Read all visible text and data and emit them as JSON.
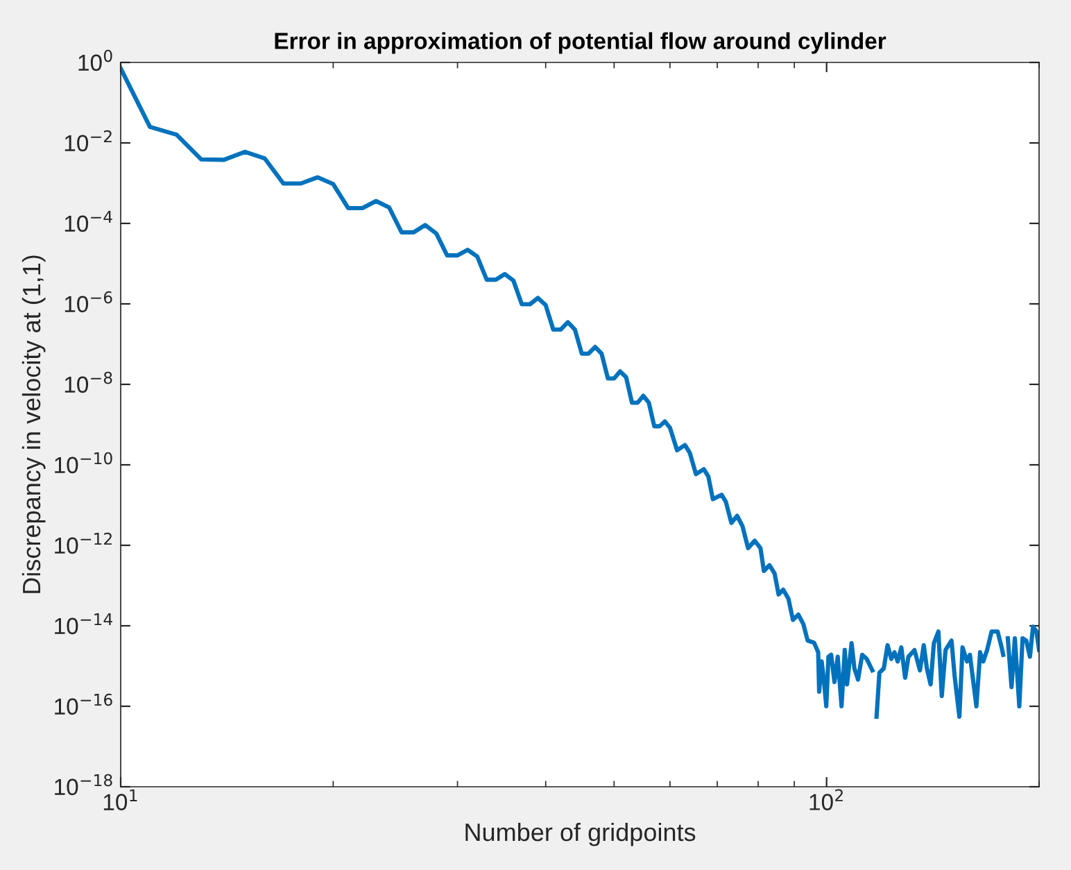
{
  "chart_data": {
    "type": "line",
    "title": "Error in approximation of potential flow around cylinder",
    "xlabel": "Number of gridpoints",
    "ylabel": "Discrepancy in velocity at (1,1)",
    "log": "xy",
    "grid": false,
    "marker": "none",
    "line_style": "solid",
    "xlim": [
      10,
      200
    ],
    "xticks": [
      {
        "value": 10,
        "label": "10$^{1}$"
      },
      {
        "value": 100,
        "label": "10$^{2}$"
      }
    ],
    "ylim": [
      1e-18,
      1
    ],
    "yticks": [
      {
        "value": 1e-18,
        "label": "10$^{−18}$"
      },
      {
        "value": 1e-16,
        "label": "10$^{−16}$"
      },
      {
        "value": 1e-14,
        "label": "10$^{−14}$"
      },
      {
        "value": 1e-12,
        "label": "10$^{−12}$"
      },
      {
        "value": 1e-10,
        "label": "10$^{−10}$"
      },
      {
        "value": 1e-08,
        "label": "10$^{−8}$"
      },
      {
        "value": 1e-06,
        "label": "10$^{−6}$"
      },
      {
        "value": 0.0001,
        "label": "10$^{−4}$"
      },
      {
        "value": 0.01,
        "label": "10$^{−2}$"
      },
      {
        "value": 1,
        "label": "10$^{0}$"
      }
    ],
    "series": [
      {
        "color": "#0072bd",
        "x": [
          10,
          11,
          12,
          13,
          14,
          15,
          16,
          17,
          18,
          19,
          20,
          21,
          22,
          23,
          24,
          25,
          26,
          27,
          28,
          29,
          30,
          31,
          32,
          33,
          34,
          35,
          36,
          37,
          38,
          39,
          40,
          41,
          42,
          43,
          44,
          45,
          46,
          47,
          48,
          49,
          50,
          51,
          52,
          53,
          54,
          55,
          56,
          57,
          58,
          59,
          60,
          61.4,
          63,
          64,
          65.3,
          67,
          68,
          69,
          71,
          72,
          73.3,
          74.7,
          76,
          77.4,
          79.1,
          80.6,
          81.5,
          83,
          84.4,
          85.5,
          86.8,
          88.3,
          89.6,
          91.2,
          92.7,
          94,
          96,
          97.3,
          97.6,
          98.4,
          99.1,
          99.9,
          100.6,
          101.5,
          102.6,
          103.7,
          105.0,
          106.1,
          106.9,
          108.5,
          109.5,
          110.8,
          112.3,
          114.0,
          116.1,
          117,
          117.7,
          118.8,
          120.5,
          122.0,
          123.5,
          124.8,
          126.1,
          127.6,
          129.2,
          130.6,
          133.2,
          135.6,
          137.3,
          138.7,
          140.4,
          141.9,
          144.0,
          145.6,
          147.4,
          150.3,
          151.8,
          154.2,
          155.8,
          158.1,
          159.6,
          163.0,
          165.0,
          166.7,
          168.8,
          171.3,
          174.7,
          177.0,
          177.9,
          179,
          180.6,
          182.8,
          184.8,
          187.5,
          189.5,
          191.8,
          194.1,
          196.1,
          198.3,
          200
        ],
        "values": [
          0.71,
          0.025,
          0.016,
          0.0039,
          0.0038,
          0.006,
          0.0041,
          0.00098,
          0.00098,
          0.0014,
          0.00095,
          0.00024,
          0.00024,
          0.00036,
          0.00025,
          6e-05,
          6e-05,
          9.1e-05,
          5.6e-05,
          1.6e-05,
          1.6e-05,
          2.2e-05,
          1.5e-05,
          4e-06,
          4e-06,
          5.5e-06,
          3.8e-06,
          9.8e-07,
          9.8e-07,
          1.4e-06,
          9.3e-07,
          2.3e-07,
          2.3e-07,
          3.5e-07,
          2.3e-07,
          5.8e-08,
          5.8e-08,
          8.5e-08,
          5.8e-08,
          1.4e-08,
          1.4e-08,
          2.1e-08,
          1.5e-08,
          3.5e-09,
          3.5e-09,
          5.2e-09,
          3.5e-09,
          9.1e-10,
          9.1e-10,
          1.2e-09,
          8.3e-10,
          2.3e-10,
          3.1e-10,
          2e-10,
          5.9e-11,
          7.8e-11,
          5.1e-11,
          1.4e-11,
          1.8e-11,
          1.2e-11,
          3.6e-12,
          5.4e-12,
          3e-12,
          8.5e-13,
          1.3e-12,
          8.5e-13,
          2.3e-13,
          3.2e-13,
          2e-13,
          6e-14,
          7.9e-14,
          4.7e-14,
          1.4e-14,
          1.9e-14,
          1.1e-14,
          4.3e-15,
          3.8e-15,
          2.2e-15,
          2.3e-16,
          1.3e-15,
          4.6e-16,
          1e-16,
          1.7e-15,
          1.9e-15,
          4e-16,
          1.7e-15,
          1e-16,
          2.5e-15,
          3.5e-16,
          3.7e-15,
          8.7e-16,
          4.6e-16,
          1.9e-15,
          1.5e-15,
          7.8e-16,
          null,
          5.5e-17,
          6.8e-16,
          8.7e-16,
          3.3e-15,
          1.5e-15,
          2.2e-15,
          1.3e-15,
          2.9e-15,
          5.1e-16,
          1.7e-15,
          2.5e-15,
          7.8e-16,
          3.3e-15,
          8.7e-16,
          3.5e-16,
          3.7e-15,
          7.2e-15,
          1.8e-16,
          2.5e-15,
          4.3e-15,
          5.9e-16,
          5.5e-17,
          2.9e-15,
          1.3e-15,
          1.9e-15,
          1e-16,
          2.2e-15,
          1.3e-15,
          2.5e-15,
          7.2e-15,
          7.2e-15,
          2.9e-15,
          1.9e-15,
          null,
          4.9e-15,
          3e-16,
          4.9e-15,
          1e-16,
          4.9e-15,
          4.3e-15,
          1.7e-15,
          9.5e-15,
          7.2e-15,
          2.5e-15
        ]
      }
    ]
  }
}
